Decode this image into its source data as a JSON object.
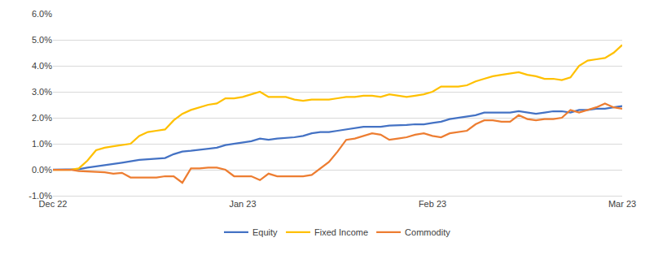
{
  "chart_data": {
    "type": "line",
    "categories": [
      "Dec 22",
      null,
      null,
      null,
      null,
      null,
      null,
      null,
      null,
      null,
      null,
      null,
      null,
      null,
      null,
      null,
      null,
      null,
      null,
      null,
      null,
      null,
      "Jan 23",
      null,
      null,
      null,
      null,
      null,
      null,
      null,
      null,
      null,
      null,
      null,
      null,
      null,
      null,
      null,
      null,
      null,
      null,
      null,
      null,
      null,
      "Feb 23",
      null,
      null,
      null,
      null,
      null,
      null,
      null,
      null,
      null,
      null,
      null,
      null,
      null,
      null,
      null,
      null,
      null,
      null,
      null,
      null,
      null,
      "Mar 23"
    ],
    "series": [
      {
        "name": "Equity",
        "color": "#4472C4",
        "values": [
          0,
          0,
          0,
          0.02,
          0.08,
          0.12,
          0.17,
          0.22,
          0.27,
          0.33,
          0.38,
          0.4,
          0.42,
          0.45,
          0.6,
          0.7,
          0.73,
          0.77,
          0.8,
          0.85,
          0.95,
          1.0,
          1.05,
          1.1,
          1.2,
          1.15,
          1.2,
          1.22,
          1.25,
          1.3,
          1.4,
          1.45,
          1.45,
          1.5,
          1.55,
          1.6,
          1.65,
          1.65,
          1.65,
          1.7,
          1.7,
          1.72,
          1.75,
          1.75,
          1.8,
          1.85,
          1.95,
          2.0,
          2.05,
          2.1,
          2.2,
          2.2,
          2.2,
          2.2,
          2.25,
          2.2,
          2.15,
          2.2,
          2.25,
          2.25,
          2.2,
          2.3,
          2.3,
          2.35,
          2.35,
          2.4,
          2.45
        ]
      },
      {
        "name": "Fixed Income",
        "color": "#FFC000",
        "values": [
          0,
          0,
          0,
          0.05,
          0.35,
          0.75,
          0.85,
          0.9,
          0.95,
          1.0,
          1.3,
          1.45,
          1.5,
          1.55,
          1.9,
          2.15,
          2.3,
          2.4,
          2.5,
          2.55,
          2.75,
          2.75,
          2.8,
          2.9,
          3.0,
          2.8,
          2.8,
          2.8,
          2.7,
          2.65,
          2.7,
          2.7,
          2.7,
          2.75,
          2.8,
          2.8,
          2.85,
          2.85,
          2.8,
          2.9,
          2.85,
          2.8,
          2.85,
          2.9,
          3.0,
          3.2,
          3.2,
          3.2,
          3.25,
          3.4,
          3.5,
          3.6,
          3.65,
          3.7,
          3.75,
          3.65,
          3.6,
          3.5,
          3.5,
          3.45,
          3.55,
          4.0,
          4.2,
          4.25,
          4.3,
          4.5,
          4.8
        ]
      },
      {
        "name": "Commodity",
        "color": "#ED7D31",
        "values": [
          0,
          0,
          0,
          -0.05,
          -0.07,
          -0.07,
          -0.1,
          -0.15,
          -0.12,
          -0.3,
          -0.3,
          -0.3,
          -0.3,
          -0.25,
          -0.25,
          -0.5,
          0.05,
          0.05,
          0.08,
          0.08,
          0.0,
          -0.25,
          -0.25,
          -0.25,
          -0.4,
          -0.15,
          -0.25,
          -0.25,
          -0.25,
          -0.25,
          -0.2,
          0.05,
          0.3,
          0.7,
          1.15,
          1.2,
          1.3,
          1.4,
          1.35,
          1.15,
          1.2,
          1.25,
          1.35,
          1.4,
          1.3,
          1.25,
          1.4,
          1.45,
          1.5,
          1.75,
          1.9,
          1.9,
          1.85,
          1.85,
          2.1,
          1.95,
          1.9,
          1.95,
          1.95,
          2.0,
          2.3,
          2.2,
          2.3,
          2.4,
          2.55,
          2.4,
          2.35
        ]
      }
    ],
    "ylim": [
      -1,
      6
    ],
    "yticks": [
      {
        "value": -1,
        "label": "-1.0%"
      },
      {
        "value": 0,
        "label": "0.0%"
      },
      {
        "value": 1,
        "label": "1.0%"
      },
      {
        "value": 2,
        "label": "2.0%"
      },
      {
        "value": 3,
        "label": "3.0%"
      },
      {
        "value": 4,
        "label": "4.0%"
      },
      {
        "value": 5,
        "label": "5.0%"
      },
      {
        "value": 6,
        "label": "6.0%"
      }
    ],
    "grid": true,
    "legend": "bottom"
  }
}
